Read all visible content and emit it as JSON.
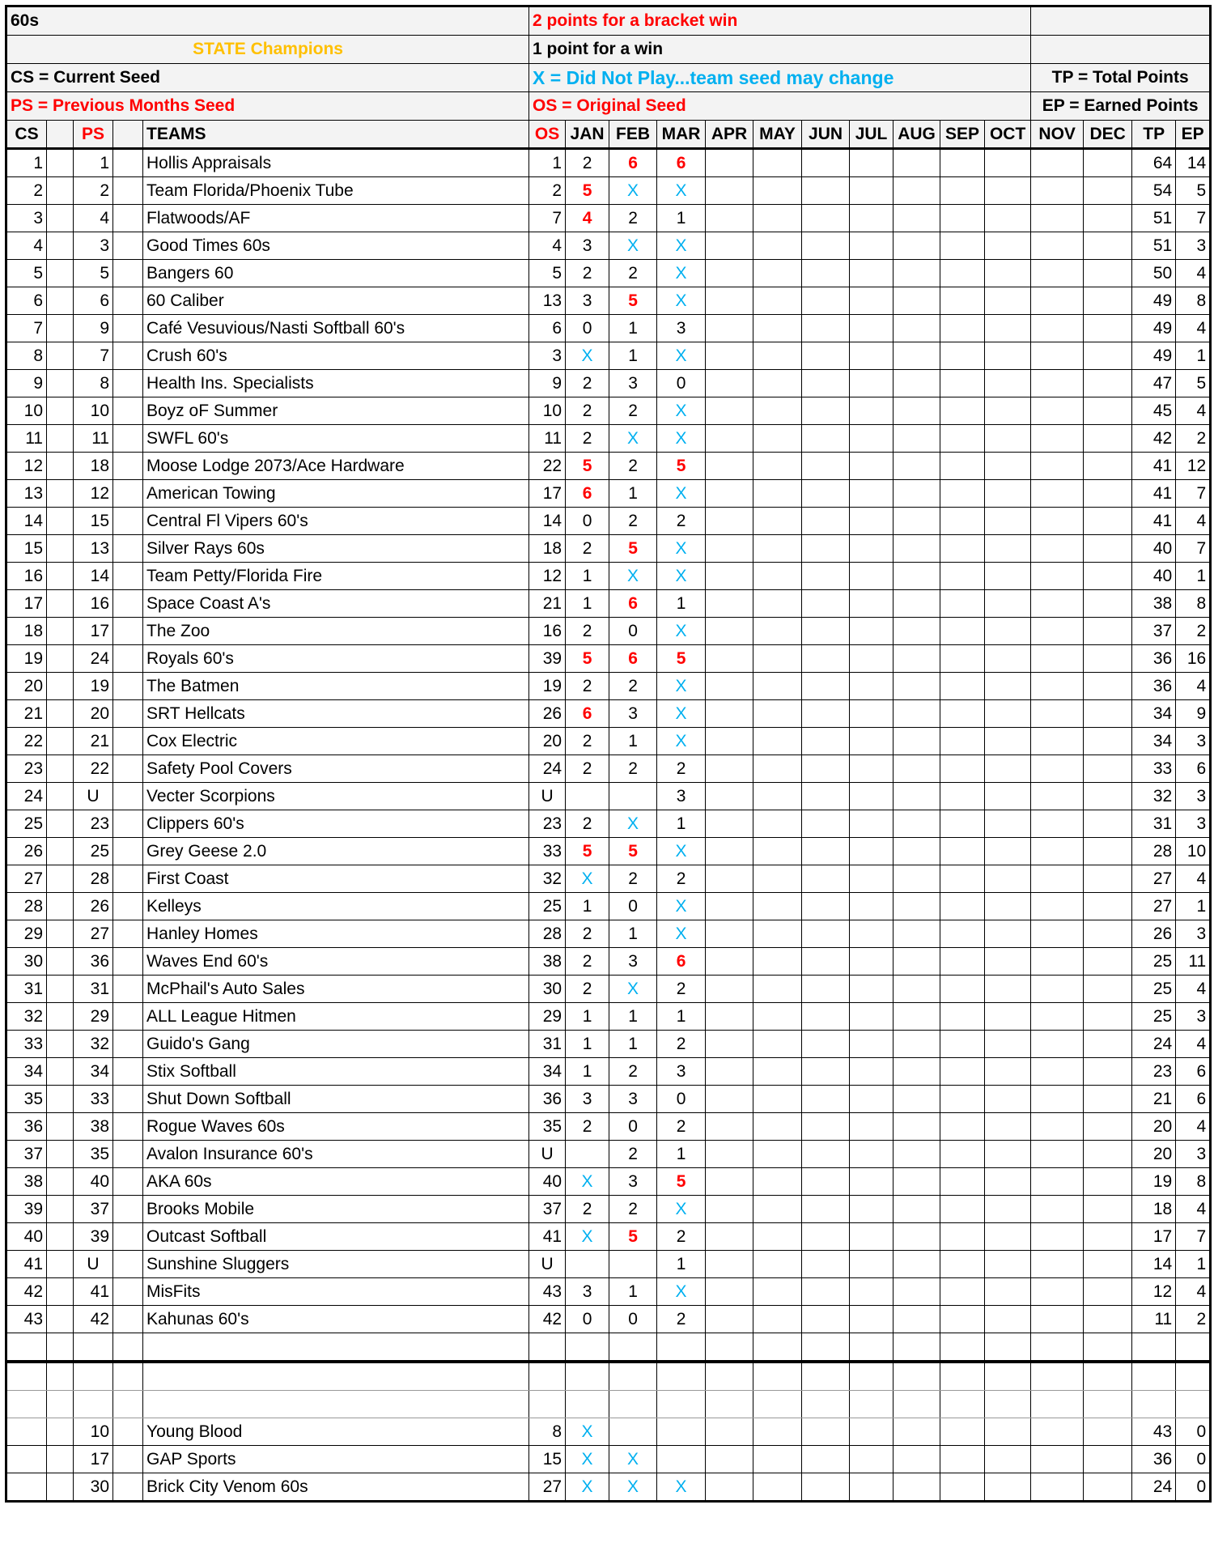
{
  "header": {
    "title": "60s",
    "state_champions": "STATE Champions",
    "cs_legend": "CS = Current Seed",
    "ps_legend": "PS = Previous Months Seed",
    "bracket_rule": "2 points for a bracket win",
    "win_rule": "1 point for a win",
    "x_legend": "X = Did Not Play...team seed may change",
    "os_legend": "OS = Original Seed",
    "tp_legend": "TP = Total Points",
    "ep_legend": "EP = Earned Points"
  },
  "columns": [
    "CS",
    "",
    "PS",
    "",
    "TEAMS",
    "OS",
    "JAN",
    "FEB",
    "MAR",
    "APR",
    "MAY",
    "JUN",
    "JUL",
    "AUG",
    "SEP",
    "OCT",
    "NOV",
    "DEC",
    "TP",
    "EP"
  ],
  "colors": {
    "red": "#ff0000",
    "blue": "#00b0f0",
    "gold": "#ffc000"
  },
  "rows": [
    [
      "1",
      "1",
      "Hollis Appraisals",
      "1",
      "2",
      "6",
      "6",
      "64",
      "14"
    ],
    [
      "2",
      "2",
      "Team Florida/Phoenix Tube",
      "2",
      "5",
      "X",
      "X",
      "54",
      "5"
    ],
    [
      "3",
      "4",
      "Flatwoods/AF",
      "7",
      "4",
      "2",
      "1",
      "51",
      "7"
    ],
    [
      "4",
      "3",
      "Good Times 60s",
      "4",
      "3",
      "X",
      "X",
      "51",
      "3"
    ],
    [
      "5",
      "5",
      "Bangers 60",
      "5",
      "2",
      "2",
      "X",
      "50",
      "4"
    ],
    [
      "6",
      "6",
      "60 Caliber",
      "13",
      "3",
      "5",
      "X",
      "49",
      "8"
    ],
    [
      "7",
      "9",
      "Café Vesuvious/Nasti Softball 60's",
      "6",
      "0",
      "1",
      "3",
      "49",
      "4"
    ],
    [
      "8",
      "7",
      "Crush 60's",
      "3",
      "X",
      "1",
      "X",
      "49",
      "1"
    ],
    [
      "9",
      "8",
      "Health Ins. Specialists",
      "9",
      "2",
      "3",
      "0",
      "47",
      "5"
    ],
    [
      "10",
      "10",
      "Boyz oF Summer",
      "10",
      "2",
      "2",
      "X",
      "45",
      "4"
    ],
    [
      "11",
      "11",
      "SWFL 60's",
      "11",
      "2",
      "X",
      "X",
      "42",
      "2"
    ],
    [
      "12",
      "18",
      "Moose Lodge 2073/Ace Hardware",
      "22",
      "5",
      "2",
      "5",
      "41",
      "12"
    ],
    [
      "13",
      "12",
      "American Towing",
      "17",
      "6",
      "1",
      "X",
      "41",
      "7"
    ],
    [
      "14",
      "15",
      "Central Fl Vipers 60's",
      "14",
      "0",
      "2",
      "2",
      "41",
      "4"
    ],
    [
      "15",
      "13",
      "Silver Rays 60s",
      "18",
      "2",
      "5",
      "X",
      "40",
      "7"
    ],
    [
      "16",
      "14",
      "Team Petty/Florida Fire",
      "12",
      "1",
      "X",
      "X",
      "40",
      "1"
    ],
    [
      "17",
      "16",
      "Space Coast A's",
      "21",
      "1",
      "6",
      "1",
      "38",
      "8"
    ],
    [
      "18",
      "17",
      "The Zoo",
      "16",
      "2",
      "0",
      "X",
      "37",
      "2"
    ],
    [
      "19",
      "24",
      "Royals 60's",
      "39",
      "5",
      "6",
      "5",
      "36",
      "16"
    ],
    [
      "20",
      "19",
      "The Batmen",
      "19",
      "2",
      "2",
      "X",
      "36",
      "4"
    ],
    [
      "21",
      "20",
      "SRT Hellcats",
      "26",
      "6",
      "3",
      "X",
      "34",
      "9"
    ],
    [
      "22",
      "21",
      "Cox Electric",
      "20",
      "2",
      "1",
      "X",
      "34",
      "3"
    ],
    [
      "23",
      "22",
      "Safety Pool Covers",
      "24",
      "2",
      "2",
      "2",
      "33",
      "6"
    ],
    [
      "24",
      "U",
      "Vecter Scorpions",
      "U",
      "",
      "",
      "3",
      "32",
      "3"
    ],
    [
      "25",
      "23",
      "Clippers 60's",
      "23",
      "2",
      "X",
      "1",
      "31",
      "3"
    ],
    [
      "26",
      "25",
      "Grey Geese 2.0",
      "33",
      "5",
      "5",
      "X",
      "28",
      "10"
    ],
    [
      "27",
      "28",
      "First Coast",
      "32",
      "X",
      "2",
      "2",
      "27",
      "4"
    ],
    [
      "28",
      "26",
      "Kelleys",
      "25",
      "1",
      "0",
      "X",
      "27",
      "1"
    ],
    [
      "29",
      "27",
      "Hanley Homes",
      "28",
      "2",
      "1",
      "X",
      "26",
      "3"
    ],
    [
      "30",
      "36",
      "Waves End 60's",
      "38",
      "2",
      "3",
      "6",
      "25",
      "11"
    ],
    [
      "31",
      "31",
      "McPhail's Auto Sales",
      "30",
      "2",
      "X",
      "2",
      "25",
      "4"
    ],
    [
      "32",
      "29",
      "ALL League Hitmen",
      "29",
      "1",
      "1",
      "1",
      "25",
      "3"
    ],
    [
      "33",
      "32",
      "Guido's Gang",
      "31",
      "1",
      "1",
      "2",
      "24",
      "4"
    ],
    [
      "34",
      "34",
      "Stix Softball",
      "34",
      "1",
      "2",
      "3",
      "23",
      "6"
    ],
    [
      "35",
      "33",
      "Shut Down Softball",
      "36",
      "3",
      "3",
      "0",
      "21",
      "6"
    ],
    [
      "36",
      "38",
      "Rogue Waves 60s",
      "35",
      "2",
      "0",
      "2",
      "20",
      "4"
    ],
    [
      "37",
      "35",
      "Avalon Insurance 60's",
      "U",
      "",
      "2",
      "1",
      "20",
      "3"
    ],
    [
      "38",
      "40",
      "AKA 60s",
      "40",
      "X",
      "3",
      "5",
      "19",
      "8"
    ],
    [
      "39",
      "37",
      "Brooks Mobile",
      "37",
      "2",
      "2",
      "X",
      "18",
      "4"
    ],
    [
      "40",
      "39",
      "Outcast Softball",
      "41",
      "X",
      "5",
      "2",
      "17",
      "7"
    ],
    [
      "41",
      "U",
      "Sunshine Sluggers",
      "U",
      "",
      "",
      "1",
      "14",
      "1"
    ],
    [
      "42",
      "41",
      "MisFits",
      "43",
      "3",
      "1",
      "X",
      "12",
      "4"
    ],
    [
      "43",
      "42",
      "Kahunas 60's",
      "42",
      "0",
      "0",
      "2",
      "11",
      "2"
    ]
  ],
  "inactive_rows": [
    [
      "",
      "10",
      "Young Blood",
      "8",
      "X",
      "",
      "",
      "43",
      "0"
    ],
    [
      "",
      "17",
      "GAP Sports",
      "15",
      "X",
      "X",
      "",
      "36",
      "0"
    ],
    [
      "",
      "30",
      "Brick City Venom 60s",
      "27",
      "X",
      "X",
      "X",
      "24",
      "0"
    ]
  ]
}
